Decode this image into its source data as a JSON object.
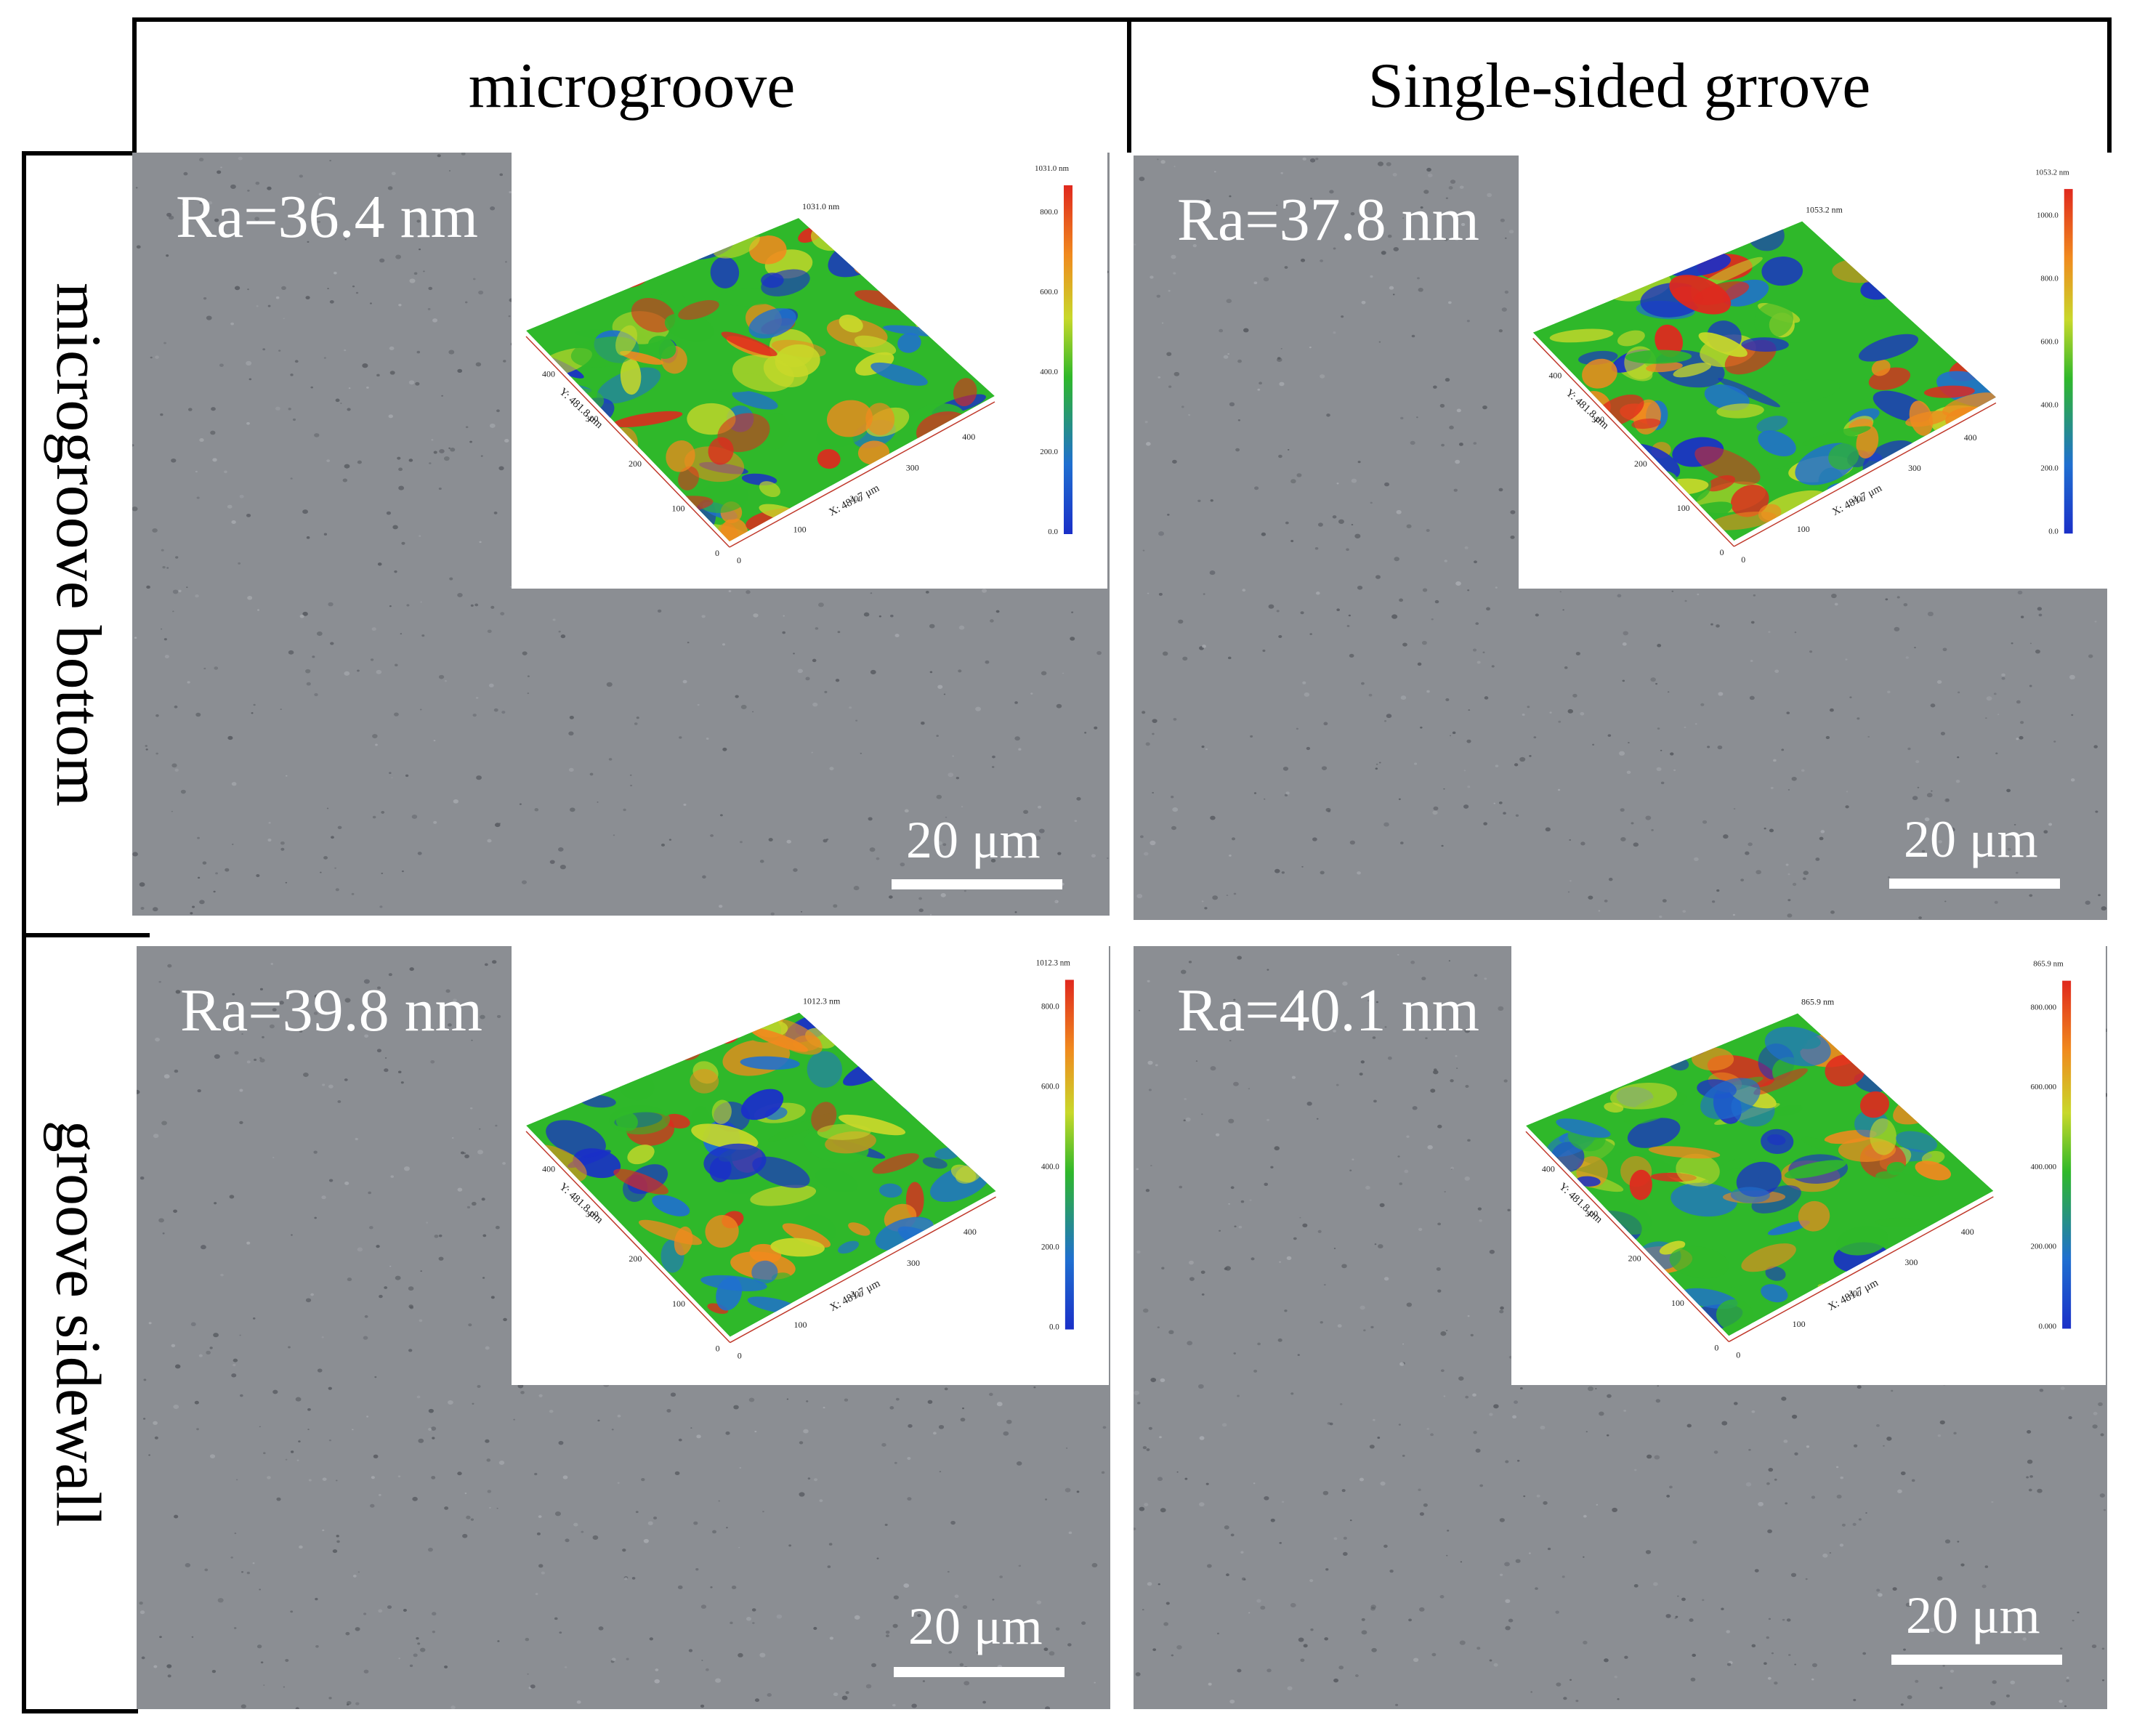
{
  "column_headers": [
    "microgroove",
    "Single-sided grrove"
  ],
  "row_headers": [
    "microgroove bottom",
    "groove sidewall"
  ],
  "panels": [
    {
      "ra_label": "Ra=36.4 nm",
      "scale_label": "20 μm",
      "inset": {
        "peak_label": "1031.0 nm",
        "colorbar_max_label": "1031.0 nm",
        "colorbar_ticks": [
          "800.0",
          "600.0",
          "400.0",
          "200.0",
          "0.0"
        ],
        "x_axis_label": "X: 481.7 μm",
        "y_axis_label": "Y: 481.8 μm",
        "axis_ticks": [
          "0",
          "100",
          "200",
          "300",
          "400"
        ]
      }
    },
    {
      "ra_label": "Ra=37.8 nm",
      "scale_label": "20 μm",
      "inset": {
        "peak_label": "1053.2 nm",
        "colorbar_max_label": "1053.2 nm",
        "colorbar_ticks": [
          "1000.0",
          "800.0",
          "600.0",
          "400.0",
          "200.0",
          "0.0"
        ],
        "x_axis_label": "X: 481.7 μm",
        "y_axis_label": "Y: 481.8 μm",
        "axis_ticks": [
          "0",
          "100",
          "200",
          "300",
          "400"
        ]
      }
    },
    {
      "ra_label": "Ra=39.8 nm",
      "scale_label": "20 μm",
      "inset": {
        "peak_label": "1012.3 nm",
        "colorbar_max_label": "1012.3 nm",
        "colorbar_ticks": [
          "800.0",
          "600.0",
          "400.0",
          "200.0",
          "0.0"
        ],
        "x_axis_label": "X: 481.7 μm",
        "y_axis_label": "Y: 481.8 μm",
        "axis_ticks": [
          "0",
          "100",
          "200",
          "300",
          "400"
        ]
      }
    },
    {
      "ra_label": "Ra=40.1 nm",
      "scale_label": "20 μm",
      "inset": {
        "peak_label": "865.9 nm",
        "colorbar_max_label": "865.9 nm",
        "colorbar_ticks": [
          "800.000",
          "600.000",
          "400.000",
          "200.000",
          "0.000"
        ],
        "x_axis_label": "X: 481.7 μm",
        "y_axis_label": "Y: 481.8 μm",
        "axis_ticks": [
          "0",
          "100",
          "200",
          "300",
          "400"
        ]
      }
    }
  ],
  "colors": {
    "surface_gray": "#8b8e93",
    "map_low": "#1a2fc8",
    "map_mid": "#2fb82a",
    "map_high": "#e0281e"
  }
}
